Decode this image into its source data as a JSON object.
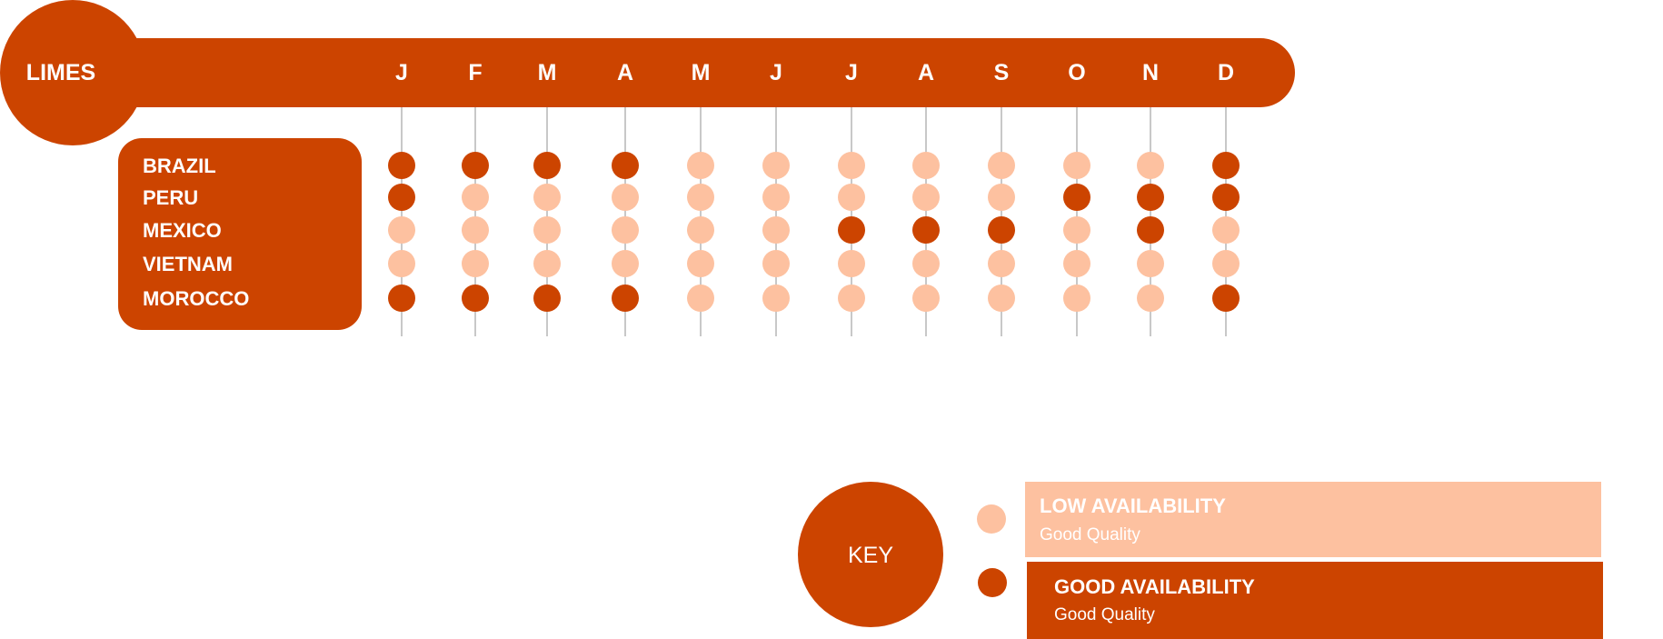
{
  "title": "LIMES",
  "months": [
    "J",
    "F",
    "M",
    "A",
    "M",
    "J",
    "J",
    "A",
    "S",
    "O",
    "N",
    "D"
  ],
  "countries": [
    "BRAZIL",
    "PERU",
    "MEXICO",
    "VIETNAM",
    "MOROCCO"
  ],
  "availability_grid": [
    [
      "good",
      "good",
      "good",
      "good",
      "low",
      "low",
      "low",
      "low",
      "low",
      "low",
      "low",
      "good"
    ],
    [
      "good",
      "low",
      "low",
      "low",
      "low",
      "low",
      "low",
      "low",
      "low",
      "good",
      "good",
      "good"
    ],
    [
      "low",
      "low",
      "low",
      "low",
      "low",
      "low",
      "good",
      "good",
      "good",
      "low",
      "good",
      "low"
    ],
    [
      "low",
      "low",
      "low",
      "low",
      "low",
      "low",
      "low",
      "low",
      "low",
      "low",
      "low",
      "low"
    ],
    [
      "good",
      "good",
      "good",
      "good",
      "low",
      "low",
      "low",
      "low",
      "low",
      "low",
      "low",
      "good"
    ]
  ],
  "key": {
    "label": "KEY",
    "low": {
      "title": "LOW AVAILABILITY",
      "subtitle": "Good Quality"
    },
    "good": {
      "title": "GOOD AVAILABILITY",
      "subtitle": "Good Quality"
    }
  },
  "colors": {
    "good": "#cc4400",
    "low": "#fdc1a0",
    "line": "#c8c8c8",
    "text": "#ffffff"
  }
}
